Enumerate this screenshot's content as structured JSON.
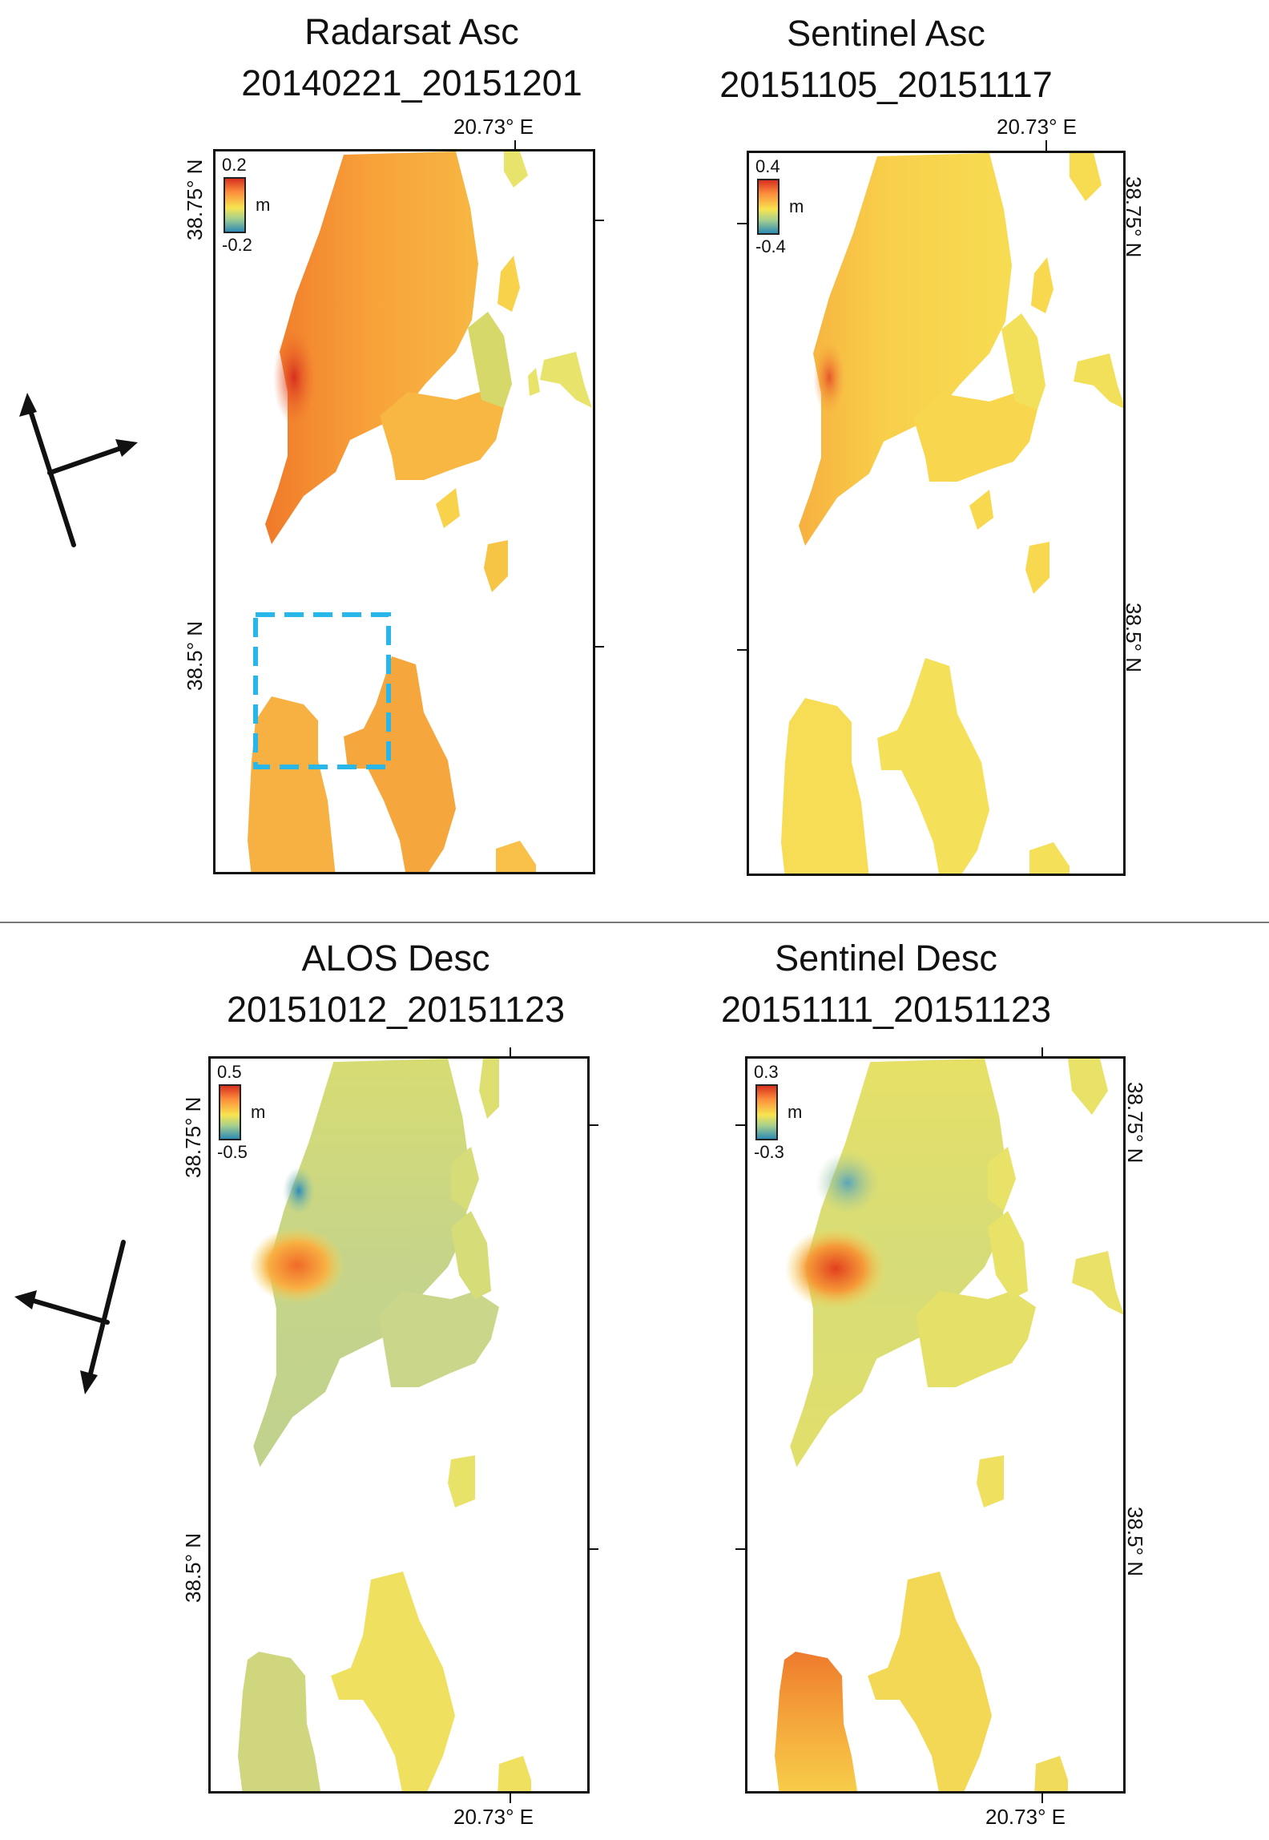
{
  "panels": [
    {
      "title": "Radarsat Asc",
      "date_range": "20140221_20151201",
      "lat_top": "38.75° N",
      "lat_bottom": "38.5° N",
      "lon_label": "20.73° E",
      "legend_max": "0.2",
      "legend_min": "-0.2",
      "legend_unit": "m"
    },
    {
      "title": "Sentinel Asc",
      "date_range": "20151105_20151117",
      "lat_top": "38.75° N",
      "lat_bottom": "38.5° N",
      "lon_label": "20.73° E",
      "legend_max": "0.4",
      "legend_min": "-0.4",
      "legend_unit": "m"
    },
    {
      "title": "ALOS Desc",
      "date_range": "20151012_20151123",
      "lat_top": "38.75° N",
      "lat_bottom": "38.5° N",
      "lon_label": "20.73° E",
      "legend_max": "0.5",
      "legend_min": "-0.5",
      "legend_unit": "m"
    },
    {
      "title": "Sentinel Desc",
      "date_range": "20151111_20151123",
      "lat_top": "38.75° N",
      "lat_bottom": "38.5° N",
      "lon_label": "20.73° E",
      "legend_max": "0.3",
      "legend_min": "-0.3",
      "legend_unit": "m"
    }
  ],
  "colors": {
    "colormap_high": "#d7301f",
    "colormap_mid": "#f7e450",
    "colormap_low": "#2c8bb5",
    "highlight_box": "#29b6e8"
  },
  "icons": {
    "geometry_ascending": "ascending-look-direction-icon",
    "geometry_descending": "descending-look-direction-icon"
  }
}
